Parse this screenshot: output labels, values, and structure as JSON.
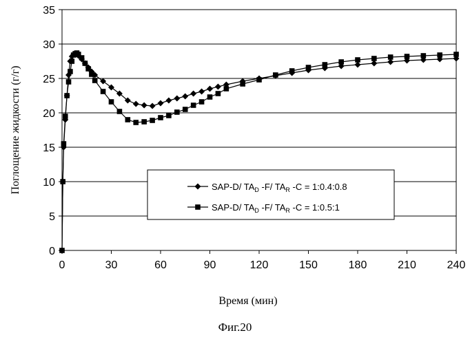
{
  "chart_data": {
    "type": "line",
    "xlabel": "Время (мин)",
    "ylabel": "Поглощение жидкости (г/г)",
    "xlim": [
      0,
      240
    ],
    "ylim": [
      0,
      35
    ],
    "xticks": [
      0,
      30,
      60,
      90,
      120,
      150,
      180,
      210,
      240
    ],
    "yticks": [
      0,
      5,
      10,
      15,
      20,
      25,
      30,
      35
    ],
    "grid": "horizontal",
    "legend_position": "center-right",
    "series": [
      {
        "name": "SAP-D/ TA_D -F/ TA_R -C = 1:0.4:0.8",
        "name_parts": {
          "pre": "SAP-D/ TA",
          "sub1": "D",
          "mid": " -F/ TA",
          "sub2": "R",
          "post": " -C = 1:0.4:0.8"
        },
        "marker": "diamond",
        "color": "#000000",
        "x": [
          0,
          0.5,
          1,
          2,
          3,
          4,
          5,
          6,
          7,
          8,
          9,
          10,
          12,
          14,
          16,
          18,
          20,
          25,
          30,
          35,
          40,
          45,
          50,
          55,
          60,
          65,
          70,
          75,
          80,
          85,
          90,
          95,
          100,
          110,
          120,
          130,
          140,
          150,
          160,
          170,
          180,
          190,
          200,
          210,
          220,
          230,
          240
        ],
        "y": [
          0,
          10,
          15,
          19,
          22.5,
          25.5,
          27.5,
          28.2,
          28.5,
          28.6,
          28.5,
          28.3,
          27.8,
          27.2,
          26.6,
          26.0,
          25.5,
          24.6,
          23.7,
          22.8,
          21.8,
          21.3,
          21.1,
          21.0,
          21.4,
          21.8,
          22.1,
          22.4,
          22.8,
          23.1,
          23.5,
          23.8,
          24.1,
          24.6,
          25.0,
          25.4,
          25.8,
          26.2,
          26.5,
          26.8,
          27.0,
          27.2,
          27.4,
          27.6,
          27.7,
          27.8,
          27.9
        ]
      },
      {
        "name": "SAP-D/ TA_D -F/ TA_R -C = 1:0.5:1",
        "name_parts": {
          "pre": "SAP-D/ TA",
          "sub1": "D",
          "mid": " -F/ TA",
          "sub2": "R",
          "post": " -C = 1:0.5:1"
        },
        "marker": "square",
        "color": "#000000",
        "x": [
          0,
          0.5,
          1,
          2,
          3,
          4,
          5,
          6,
          7,
          8,
          9,
          10,
          12,
          14,
          16,
          18,
          20,
          25,
          30,
          35,
          40,
          45,
          50,
          55,
          60,
          65,
          70,
          75,
          80,
          85,
          90,
          95,
          100,
          110,
          120,
          130,
          140,
          150,
          160,
          170,
          180,
          190,
          200,
          210,
          220,
          230,
          240
        ],
        "y": [
          0,
          10,
          15.5,
          19.5,
          22.5,
          24.5,
          26,
          27.5,
          28.4,
          28.6,
          28.7,
          28.5,
          28.0,
          27.2,
          26.4,
          25.6,
          24.7,
          23.1,
          21.6,
          20.2,
          19.0,
          18.6,
          18.7,
          18.9,
          19.3,
          19.6,
          20.1,
          20.5,
          21.1,
          21.6,
          22.3,
          22.8,
          23.5,
          24.2,
          24.8,
          25.5,
          26.1,
          26.6,
          27.0,
          27.4,
          27.7,
          27.9,
          28.1,
          28.2,
          28.3,
          28.4,
          28.5
        ]
      }
    ]
  },
  "figure_caption": "Фиг.20"
}
